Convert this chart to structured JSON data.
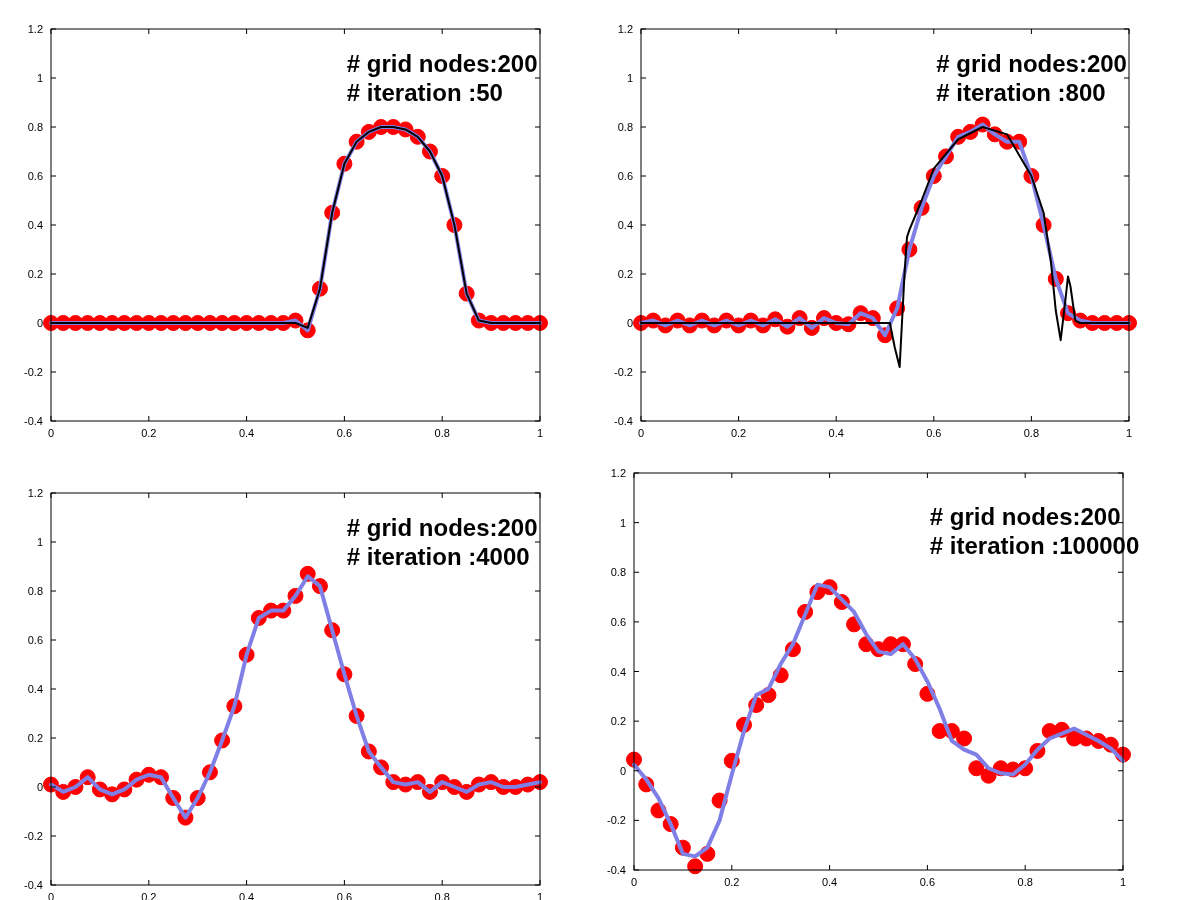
{
  "chart_data": [
    {
      "type": "scatter",
      "annotations": [
        "# grid nodes:200",
        "# iteration :50"
      ],
      "x": [
        0,
        0.025,
        0.05,
        0.075,
        0.1,
        0.125,
        0.15,
        0.175,
        0.2,
        0.225,
        0.25,
        0.275,
        0.3,
        0.325,
        0.35,
        0.375,
        0.4,
        0.425,
        0.45,
        0.475,
        0.5,
        0.525,
        0.55,
        0.575,
        0.6,
        0.625,
        0.65,
        0.675,
        0.7,
        0.725,
        0.75,
        0.775,
        0.8,
        0.825,
        0.85,
        0.875,
        0.9,
        0.925,
        0.95,
        0.975,
        1
      ],
      "xlim": [
        0,
        1
      ],
      "ylim": [
        -0.4,
        1.2
      ],
      "xticks": [
        0,
        0.2,
        0.4,
        0.6,
        0.8,
        1
      ],
      "yticks": [
        -0.4,
        -0.2,
        0,
        0.2,
        0.4,
        0.6,
        0.8,
        1,
        1.2
      ],
      "grid": false,
      "series": [
        {
          "color": "#ff0000",
          "marker": "circle",
          "values": [
            0,
            0,
            0,
            0,
            0,
            0,
            0,
            0,
            0,
            0,
            0,
            0,
            0,
            0,
            0,
            0,
            0,
            0,
            0,
            0,
            0.01,
            -0.03,
            0.14,
            0.45,
            0.65,
            0.74,
            0.78,
            0.8,
            0.8,
            0.79,
            0.76,
            0.7,
            0.6,
            0.4,
            0.12,
            0.01,
            0,
            0,
            0,
            0,
            0
          ]
        },
        {
          "type": "line",
          "color": "#7f7fe5",
          "marker": "none",
          "values": [
            0,
            0,
            0,
            0,
            0,
            0,
            0,
            0,
            0,
            0,
            0,
            0,
            0,
            0,
            0,
            0,
            0,
            0,
            0,
            0,
            0.01,
            -0.03,
            0.14,
            0.45,
            0.65,
            0.74,
            0.78,
            0.8,
            0.8,
            0.79,
            0.76,
            0.7,
            0.6,
            0.4,
            0.12,
            0.01,
            0,
            0,
            0,
            0,
            0
          ]
        },
        {
          "type": "line",
          "color": "#000000",
          "marker": "none",
          "values": [
            0,
            0,
            0,
            0,
            0,
            0,
            0,
            0,
            0,
            0,
            0,
            0,
            0,
            0,
            0,
            0,
            0,
            0,
            0,
            0,
            0,
            -0.02,
            0.14,
            0.45,
            0.65,
            0.74,
            0.78,
            0.8,
            0.8,
            0.79,
            0.76,
            0.7,
            0.6,
            0.4,
            0.12,
            0.01,
            0,
            0,
            0,
            0,
            0
          ]
        }
      ]
    },
    {
      "type": "scatter",
      "annotations": [
        "# grid nodes:200",
        "# iteration :800"
      ],
      "x": [
        0,
        0.025,
        0.05,
        0.075,
        0.1,
        0.125,
        0.15,
        0.175,
        0.2,
        0.225,
        0.25,
        0.275,
        0.3,
        0.325,
        0.35,
        0.375,
        0.4,
        0.425,
        0.45,
        0.475,
        0.5,
        0.525,
        0.55,
        0.575,
        0.6,
        0.625,
        0.65,
        0.675,
        0.7,
        0.725,
        0.75,
        0.775,
        0.8,
        0.825,
        0.85,
        0.875,
        0.9,
        0.925,
        0.95,
        0.975,
        1
      ],
      "xlim": [
        0,
        1
      ],
      "ylim": [
        -0.4,
        1.2
      ],
      "xticks": [
        0,
        0.2,
        0.4,
        0.6,
        0.8,
        1
      ],
      "yticks": [
        -0.4,
        -0.2,
        0,
        0.2,
        0.4,
        0.6,
        0.8,
        1,
        1.2
      ],
      "grid": false,
      "series": [
        {
          "color": "#ff0000",
          "marker": "circle",
          "values": [
            0,
            0.01,
            -0.01,
            0.01,
            -0.01,
            0.01,
            -0.01,
            0.01,
            -0.01,
            0.01,
            -0.01,
            0.015,
            -0.015,
            0.02,
            -0.02,
            0.02,
            0,
            -0.005,
            0.04,
            0.02,
            -0.05,
            0.06,
            0.3,
            0.47,
            0.6,
            0.68,
            0.76,
            0.78,
            0.81,
            0.77,
            0.74,
            0.74,
            0.6,
            0.4,
            0.18,
            0.04,
            0.01,
            0,
            0,
            0,
            0
          ]
        },
        {
          "type": "line",
          "color": "#7f7fe5",
          "marker": "none",
          "values": [
            0,
            0.01,
            -0.01,
            0.01,
            -0.01,
            0.01,
            -0.01,
            0.01,
            -0.01,
            0.01,
            -0.01,
            0.015,
            -0.015,
            0.02,
            -0.02,
            0.02,
            0,
            -0.005,
            0.04,
            0.02,
            -0.05,
            0.06,
            0.3,
            0.47,
            0.6,
            0.68,
            0.76,
            0.78,
            0.81,
            0.77,
            0.74,
            0.74,
            0.6,
            0.4,
            0.18,
            0.04,
            0.01,
            0,
            0,
            0,
            0
          ]
        },
        {
          "type": "line",
          "color": "#000000",
          "marker": "none",
          "x": [
            0,
            0.51,
            0.52,
            0.53,
            0.54,
            0.545,
            0.55,
            0.575,
            0.6,
            0.65,
            0.7,
            0.75,
            0.8,
            0.825,
            0.84,
            0.85,
            0.86,
            0.87,
            0.875,
            0.88,
            0.89,
            0.9,
            1
          ],
          "values": [
            0,
            0,
            -0.1,
            -0.18,
            0.2,
            0.35,
            0.38,
            0.5,
            0.63,
            0.75,
            0.8,
            0.77,
            0.6,
            0.45,
            0.25,
            0.05,
            -0.07,
            0.1,
            0.19,
            0.15,
            0.01,
            0,
            0
          ]
        }
      ]
    },
    {
      "type": "scatter",
      "annotations": [
        "# grid nodes:200",
        "# iteration :4000"
      ],
      "x": [
        0,
        0.025,
        0.05,
        0.075,
        0.1,
        0.125,
        0.15,
        0.175,
        0.2,
        0.225,
        0.25,
        0.275,
        0.3,
        0.325,
        0.35,
        0.375,
        0.4,
        0.425,
        0.45,
        0.475,
        0.5,
        0.525,
        0.55,
        0.575,
        0.6,
        0.625,
        0.65,
        0.675,
        0.7,
        0.725,
        0.75,
        0.775,
        0.8,
        0.825,
        0.85,
        0.875,
        0.9,
        0.925,
        0.95,
        0.975,
        1
      ],
      "xlim": [
        0,
        1
      ],
      "ylim": [
        -0.4,
        1.2
      ],
      "xticks": [
        0,
        0.2,
        0.4,
        0.6,
        0.8,
        1
      ],
      "yticks": [
        -0.4,
        -0.2,
        0,
        0.2,
        0.4,
        0.6,
        0.8,
        1,
        1.2
      ],
      "grid": false,
      "series": [
        {
          "color": "#ff0000",
          "marker": "circle",
          "values": [
            0.01,
            -0.02,
            0,
            0.04,
            -0.01,
            -0.03,
            -0.01,
            0.03,
            0.05,
            0.04,
            -0.045,
            -0.125,
            -0.045,
            0.06,
            0.19,
            0.33,
            0.54,
            0.69,
            0.72,
            0.72,
            0.78,
            0.87,
            0.82,
            0.64,
            0.46,
            0.29,
            0.145,
            0.08,
            0.02,
            0.01,
            0.02,
            -0.02,
            0.02,
            0,
            -0.02,
            0.01,
            0.02,
            0,
            0,
            0.01,
            0.02
          ]
        },
        {
          "type": "line",
          "color": "#7f7fe5",
          "marker": "none",
          "values": [
            0.01,
            -0.02,
            0,
            0.04,
            -0.01,
            -0.03,
            -0.01,
            0.03,
            0.05,
            0.04,
            -0.045,
            -0.125,
            -0.045,
            0.06,
            0.19,
            0.33,
            0.54,
            0.69,
            0.72,
            0.72,
            0.78,
            0.86,
            0.82,
            0.64,
            0.46,
            0.29,
            0.145,
            0.08,
            0.02,
            0.01,
            0.02,
            -0.02,
            0.02,
            0,
            -0.02,
            0.01,
            0.02,
            0,
            0,
            0.01,
            0.02
          ]
        }
      ]
    },
    {
      "type": "scatter",
      "annotations": [
        "# grid nodes:200",
        "# iteration :100000"
      ],
      "x": [
        0,
        0.025,
        0.05,
        0.075,
        0.1,
        0.125,
        0.15,
        0.175,
        0.2,
        0.225,
        0.25,
        0.275,
        0.3,
        0.325,
        0.35,
        0.375,
        0.4,
        0.425,
        0.45,
        0.475,
        0.5,
        0.525,
        0.55,
        0.575,
        0.6,
        0.625,
        0.65,
        0.675,
        0.7,
        0.725,
        0.75,
        0.775,
        0.8,
        0.825,
        0.85,
        0.875,
        0.9,
        0.925,
        0.95,
        0.975,
        1
      ],
      "xlim": [
        0,
        1
      ],
      "ylim": [
        -0.4,
        1.2
      ],
      "xticks": [
        0,
        0.2,
        0.4,
        0.6,
        0.8,
        1
      ],
      "yticks": [
        -0.4,
        -0.2,
        0,
        0.2,
        0.4,
        0.6,
        0.8,
        1,
        1.2
      ],
      "grid": false,
      "series": [
        {
          "color": "#ff0000",
          "marker": "circle",
          "values": [
            0.045,
            -0.055,
            -0.16,
            -0.215,
            -0.31,
            -0.385,
            -0.335,
            -0.12,
            0.04,
            0.185,
            0.265,
            0.305,
            0.385,
            0.49,
            0.64,
            0.72,
            0.74,
            0.68,
            0.59,
            0.51,
            0.49,
            0.51,
            0.51,
            0.43,
            0.31,
            0.16,
            0.16,
            0.13,
            0.01,
            -0.02,
            0.01,
            0.005,
            0.01,
            0.08,
            0.16,
            0.165,
            0.13,
            0.13,
            0.12,
            0.105,
            0.065
          ]
        },
        {
          "type": "line",
          "color": "#7f7fe5",
          "marker": "none",
          "values": [
            0.025,
            -0.035,
            -0.11,
            -0.215,
            -0.335,
            -0.345,
            -0.31,
            -0.2,
            -0.015,
            0.16,
            0.305,
            0.33,
            0.43,
            0.51,
            0.63,
            0.75,
            0.74,
            0.69,
            0.64,
            0.55,
            0.48,
            0.47,
            0.51,
            0.45,
            0.36,
            0.25,
            0.12,
            0.085,
            0.065,
            0.01,
            -0.01,
            -0.015,
            0.025,
            0.085,
            0.13,
            0.15,
            0.17,
            0.145,
            0.12,
            0.09,
            0.04
          ]
        }
      ]
    }
  ]
}
